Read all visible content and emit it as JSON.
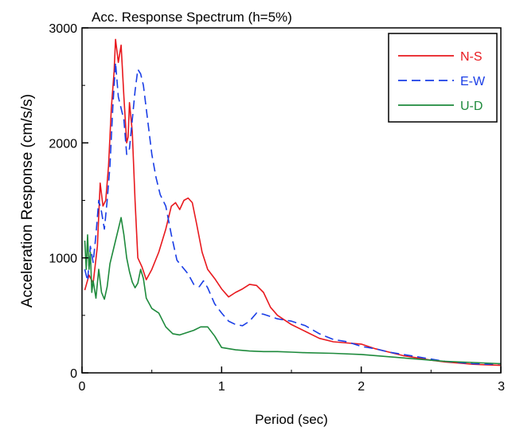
{
  "chart_data": {
    "type": "line",
    "title": "Acc. Response Spectrum (h=5%)",
    "xlabel": "Period (sec)",
    "ylabel": "Acceleration Response (cm/s/s)",
    "xlim": [
      0,
      3
    ],
    "ylim": [
      0,
      3000
    ],
    "x_ticks": [
      "0",
      "1",
      "2",
      "3"
    ],
    "y_ticks": [
      "0",
      "1000",
      "2000",
      "3000"
    ],
    "grid": false,
    "legend_position": "top-right",
    "series": [
      {
        "name": "N-S",
        "color": "#e8191e",
        "dash": "solid",
        "points": [
          [
            0.02,
            720
          ],
          [
            0.05,
            850
          ],
          [
            0.08,
            780
          ],
          [
            0.11,
            1100
          ],
          [
            0.13,
            1650
          ],
          [
            0.15,
            1450
          ],
          [
            0.17,
            1500
          ],
          [
            0.19,
            1800
          ],
          [
            0.21,
            2300
          ],
          [
            0.23,
            2620
          ],
          [
            0.24,
            2900
          ],
          [
            0.26,
            2700
          ],
          [
            0.28,
            2850
          ],
          [
            0.3,
            2400
          ],
          [
            0.32,
            2000
          ],
          [
            0.33,
            2050
          ],
          [
            0.34,
            2350
          ],
          [
            0.36,
            2100
          ],
          [
            0.38,
            1500
          ],
          [
            0.4,
            1000
          ],
          [
            0.43,
            920
          ],
          [
            0.46,
            810
          ],
          [
            0.5,
            900
          ],
          [
            0.55,
            1050
          ],
          [
            0.6,
            1250
          ],
          [
            0.64,
            1450
          ],
          [
            0.67,
            1480
          ],
          [
            0.7,
            1420
          ],
          [
            0.73,
            1500
          ],
          [
            0.76,
            1520
          ],
          [
            0.79,
            1480
          ],
          [
            0.82,
            1300
          ],
          [
            0.86,
            1050
          ],
          [
            0.9,
            900
          ],
          [
            0.95,
            820
          ],
          [
            1.0,
            730
          ],
          [
            1.05,
            660
          ],
          [
            1.1,
            700
          ],
          [
            1.15,
            730
          ],
          [
            1.2,
            770
          ],
          [
            1.25,
            760
          ],
          [
            1.3,
            700
          ],
          [
            1.35,
            570
          ],
          [
            1.4,
            500
          ],
          [
            1.5,
            420
          ],
          [
            1.6,
            360
          ],
          [
            1.7,
            300
          ],
          [
            1.8,
            270
          ],
          [
            1.9,
            260
          ],
          [
            2.0,
            250
          ],
          [
            2.1,
            210
          ],
          [
            2.2,
            180
          ],
          [
            2.3,
            150
          ],
          [
            2.4,
            130
          ],
          [
            2.5,
            110
          ],
          [
            2.6,
            95
          ],
          [
            2.7,
            85
          ],
          [
            2.8,
            75
          ],
          [
            2.9,
            70
          ],
          [
            3.0,
            65
          ]
        ]
      },
      {
        "name": "E-W",
        "color": "#1a3ee6",
        "dash": "dashed",
        "points": [
          [
            0.02,
            900
          ],
          [
            0.04,
            800
          ],
          [
            0.06,
            1100
          ],
          [
            0.08,
            960
          ],
          [
            0.1,
            1200
          ],
          [
            0.12,
            1500
          ],
          [
            0.14,
            1400
          ],
          [
            0.16,
            1250
          ],
          [
            0.18,
            1500
          ],
          [
            0.2,
            1800
          ],
          [
            0.22,
            2300
          ],
          [
            0.24,
            2700
          ],
          [
            0.26,
            2400
          ],
          [
            0.28,
            2300
          ],
          [
            0.3,
            2200
          ],
          [
            0.32,
            1900
          ],
          [
            0.34,
            1950
          ],
          [
            0.36,
            2200
          ],
          [
            0.38,
            2450
          ],
          [
            0.4,
            2640
          ],
          [
            0.42,
            2600
          ],
          [
            0.44,
            2500
          ],
          [
            0.47,
            2200
          ],
          [
            0.5,
            1900
          ],
          [
            0.53,
            1700
          ],
          [
            0.56,
            1550
          ],
          [
            0.6,
            1450
          ],
          [
            0.64,
            1200
          ],
          [
            0.68,
            980
          ],
          [
            0.72,
            920
          ],
          [
            0.76,
            860
          ],
          [
            0.8,
            770
          ],
          [
            0.84,
            750
          ],
          [
            0.87,
            800
          ],
          [
            0.9,
            740
          ],
          [
            0.95,
            600
          ],
          [
            1.0,
            520
          ],
          [
            1.05,
            450
          ],
          [
            1.1,
            420
          ],
          [
            1.15,
            410
          ],
          [
            1.2,
            450
          ],
          [
            1.25,
            520
          ],
          [
            1.3,
            510
          ],
          [
            1.35,
            490
          ],
          [
            1.4,
            470
          ],
          [
            1.5,
            450
          ],
          [
            1.6,
            410
          ],
          [
            1.7,
            340
          ],
          [
            1.8,
            290
          ],
          [
            1.9,
            270
          ],
          [
            2.0,
            230
          ],
          [
            2.1,
            210
          ],
          [
            2.2,
            180
          ],
          [
            2.3,
            160
          ],
          [
            2.4,
            140
          ],
          [
            2.5,
            120
          ],
          [
            2.6,
            100
          ],
          [
            2.7,
            90
          ],
          [
            2.8,
            80
          ],
          [
            2.9,
            75
          ],
          [
            3.0,
            80
          ]
        ]
      },
      {
        "name": "U-D",
        "color": "#1e8a3c",
        "dash": "solid",
        "points": [
          [
            0.02,
            1150
          ],
          [
            0.03,
            900
          ],
          [
            0.04,
            1200
          ],
          [
            0.05,
            900
          ],
          [
            0.06,
            1050
          ],
          [
            0.07,
            700
          ],
          [
            0.08,
            800
          ],
          [
            0.1,
            650
          ],
          [
            0.12,
            900
          ],
          [
            0.14,
            700
          ],
          [
            0.16,
            640
          ],
          [
            0.18,
            750
          ],
          [
            0.2,
            950
          ],
          [
            0.22,
            1050
          ],
          [
            0.24,
            1150
          ],
          [
            0.26,
            1250
          ],
          [
            0.28,
            1350
          ],
          [
            0.3,
            1200
          ],
          [
            0.32,
            1000
          ],
          [
            0.34,
            880
          ],
          [
            0.36,
            790
          ],
          [
            0.38,
            740
          ],
          [
            0.4,
            780
          ],
          [
            0.42,
            900
          ],
          [
            0.44,
            820
          ],
          [
            0.46,
            650
          ],
          [
            0.5,
            560
          ],
          [
            0.55,
            520
          ],
          [
            0.6,
            400
          ],
          [
            0.65,
            340
          ],
          [
            0.7,
            330
          ],
          [
            0.75,
            350
          ],
          [
            0.8,
            370
          ],
          [
            0.85,
            400
          ],
          [
            0.9,
            400
          ],
          [
            0.95,
            320
          ],
          [
            1.0,
            220
          ],
          [
            1.1,
            200
          ],
          [
            1.2,
            190
          ],
          [
            1.3,
            185
          ],
          [
            1.4,
            185
          ],
          [
            1.5,
            180
          ],
          [
            1.6,
            175
          ],
          [
            1.8,
            170
          ],
          [
            2.0,
            160
          ],
          [
            2.2,
            140
          ],
          [
            2.4,
            120
          ],
          [
            2.6,
            100
          ],
          [
            2.8,
            90
          ],
          [
            3.0,
            80
          ]
        ]
      }
    ]
  }
}
